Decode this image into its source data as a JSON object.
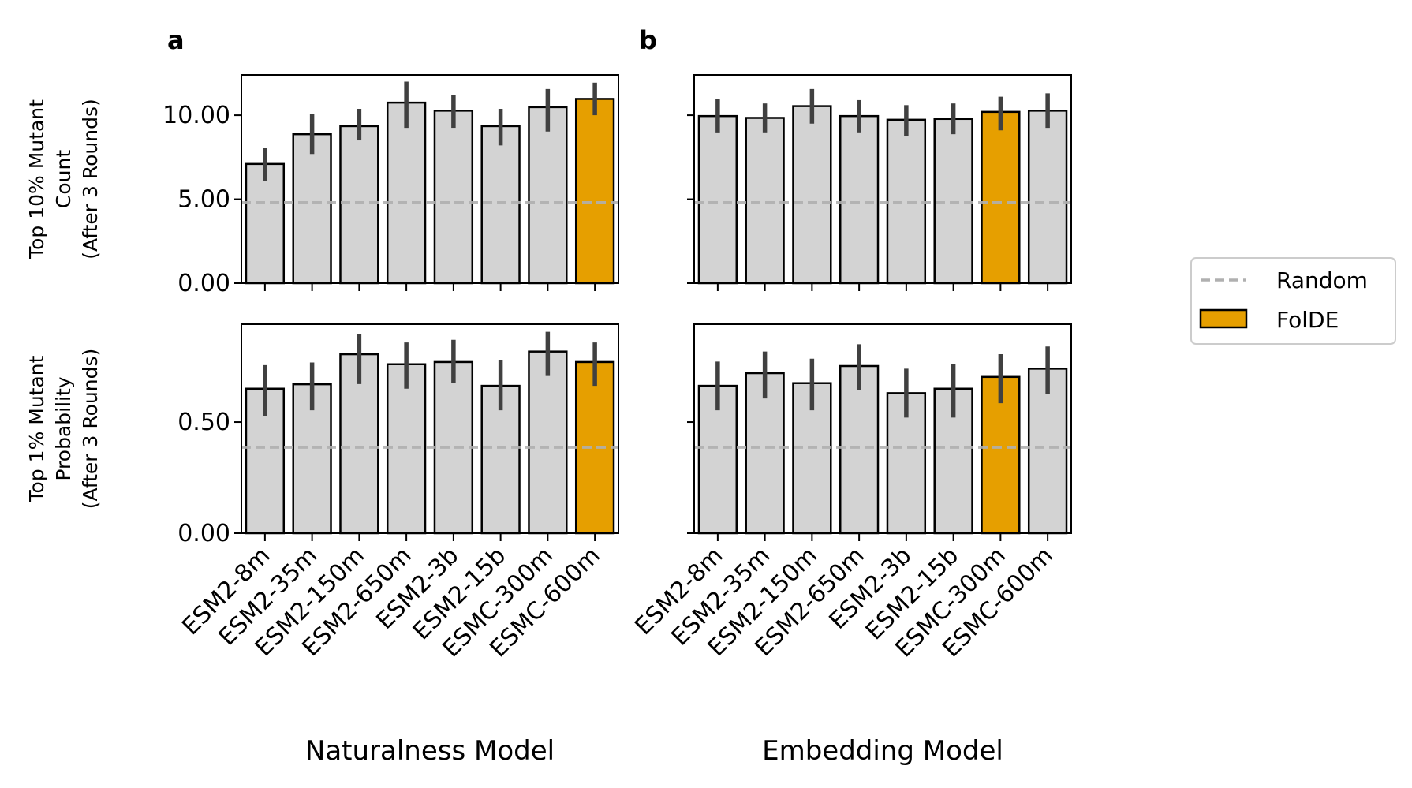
{
  "panel_labels": [
    "a",
    "b"
  ],
  "legend": {
    "random_label": "Random",
    "folde_label": "FolDE",
    "placement": "right"
  },
  "colors": {
    "bar": "#d3d3d3",
    "highlight": "#e69f00",
    "error": "#404040",
    "random_line": "#b0b0b0"
  },
  "chart_data": [
    {
      "type": "bar",
      "panel": "a",
      "row": "top",
      "ylabel": [
        "Top 10% Mutant",
        "Count",
        "(After 3 Rounds)"
      ],
      "xlabel": "",
      "ylim": [
        0,
        12.4
      ],
      "yticks": [
        0,
        5,
        10
      ],
      "ytick_labels": [
        "0.00",
        "5.00",
        "10.00"
      ],
      "categories": [
        "ESM2-8m",
        "ESM2-35m",
        "ESM2-150m",
        "ESM2-650m",
        "ESM2-3b",
        "ESM2-15b",
        "ESMC-300m",
        "ESMC-600m"
      ],
      "values": [
        7.1,
        8.87,
        9.35,
        10.75,
        10.27,
        9.35,
        10.48,
        10.97
      ],
      "ci_low": [
        6.07,
        7.69,
        8.5,
        9.25,
        9.25,
        8.2,
        9.03,
        10.0
      ],
      "ci_high": [
        8.06,
        10.05,
        10.38,
        12.0,
        11.2,
        10.38,
        11.56,
        11.94
      ],
      "highlight_index": 7,
      "random": 4.8
    },
    {
      "type": "bar",
      "panel": "b",
      "row": "top",
      "ylabel": [],
      "xlabel": "",
      "ylim": [
        0,
        12.4
      ],
      "yticks": [
        0,
        5,
        10
      ],
      "ytick_labels": [],
      "categories": [
        "ESM2-8m",
        "ESM2-35m",
        "ESM2-150m",
        "ESM2-650m",
        "ESM2-3b",
        "ESM2-15b",
        "ESMC-300m",
        "ESMC-600m"
      ],
      "values": [
        9.95,
        9.84,
        10.54,
        9.95,
        9.73,
        9.78,
        10.2,
        10.27
      ],
      "ci_low": [
        8.98,
        8.98,
        9.5,
        8.98,
        8.76,
        8.87,
        9.1,
        9.25
      ],
      "ci_high": [
        10.97,
        10.7,
        11.56,
        10.9,
        10.6,
        10.7,
        11.1,
        11.3
      ],
      "highlight_index": 6,
      "random": 4.8
    },
    {
      "type": "bar",
      "panel": "a",
      "row": "bottom",
      "ylabel": [
        "Top 1% Mutant",
        "Probability",
        "(After 3 Rounds)"
      ],
      "xlabel": "Naturalness Model",
      "ylim": [
        0,
        0.94
      ],
      "yticks": [
        0,
        0.5
      ],
      "ytick_labels": [
        "0.00",
        "0.50"
      ],
      "categories": [
        "ESM2-8m",
        "ESM2-35m",
        "ESM2-150m",
        "ESM2-650m",
        "ESM2-3b",
        "ESM2-15b",
        "ESMC-300m",
        "ESMC-600m"
      ],
      "values": [
        0.65,
        0.67,
        0.805,
        0.76,
        0.77,
        0.663,
        0.817,
        0.77
      ],
      "ci_low": [
        0.528,
        0.553,
        0.671,
        0.65,
        0.675,
        0.553,
        0.707,
        0.663
      ],
      "ci_high": [
        0.756,
        0.768,
        0.894,
        0.858,
        0.87,
        0.78,
        0.906,
        0.858
      ],
      "highlight_index": 7,
      "random": 0.386
    },
    {
      "type": "bar",
      "panel": "b",
      "row": "bottom",
      "ylabel": [],
      "xlabel": "Embedding Model",
      "ylim": [
        0,
        0.94
      ],
      "yticks": [
        0,
        0.5
      ],
      "ytick_labels": [],
      "categories": [
        "ESM2-8m",
        "ESM2-35m",
        "ESM2-150m",
        "ESM2-650m",
        "ESM2-3b",
        "ESM2-15b",
        "ESMC-300m",
        "ESMC-600m"
      ],
      "values": [
        0.663,
        0.72,
        0.675,
        0.752,
        0.63,
        0.65,
        0.703,
        0.74
      ],
      "ci_low": [
        0.553,
        0.606,
        0.553,
        0.642,
        0.52,
        0.52,
        0.585,
        0.626
      ],
      "ci_high": [
        0.772,
        0.817,
        0.785,
        0.85,
        0.74,
        0.76,
        0.805,
        0.84
      ],
      "highlight_index": 6,
      "random": 0.386
    }
  ]
}
